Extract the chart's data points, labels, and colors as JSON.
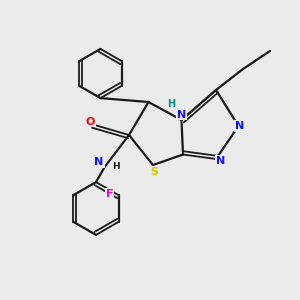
{
  "background_color": "#ebebeb",
  "bond_color": "#1a1a1a",
  "atom_colors": {
    "N": "#1010ff",
    "NH": "#008b8b",
    "S": "#cccc00",
    "O": "#ff0000",
    "F": "#ff00cc",
    "C": "#1a1a1a"
  },
  "figsize": [
    3.0,
    3.0
  ],
  "dpi": 100
}
